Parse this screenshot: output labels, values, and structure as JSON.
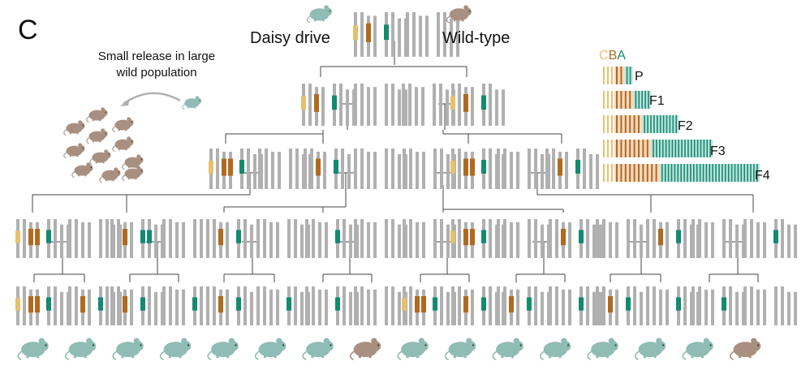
{
  "panel_letter": "C",
  "labels": {
    "daisy_drive": "Daisy drive",
    "wild_type": "Wild-type",
    "release_text": "Small release in large wild population"
  },
  "legend": {
    "letters": [
      "C",
      "B",
      "A"
    ],
    "generations": [
      "P",
      "F1",
      "F2",
      "F3",
      "F4"
    ],
    "copies": [
      {
        "c": 3,
        "b": 2,
        "a": 2
      },
      {
        "c": 3,
        "b": 4,
        "a": 5
      },
      {
        "c": 3,
        "b": 6,
        "a": 11
      },
      {
        "c": 3,
        "b": 8,
        "a": 19
      },
      {
        "c": 3,
        "b": 10,
        "a": 31
      }
    ]
  },
  "colors": {
    "chromosome": "#b0b0b0",
    "element_c": "#e7c06f",
    "element_b": "#b06a20",
    "element_a": "#138a72",
    "mouse_drive": "#8fbcb4",
    "mouse_wild": "#a89080",
    "line": "#444444",
    "band_b": "#f6d8bf",
    "band_a": "#bfe3db"
  },
  "bottom_mice": [
    "drive",
    "drive",
    "drive",
    "drive",
    "drive",
    "drive",
    "drive",
    "wild",
    "drive",
    "drive",
    "drive",
    "drive",
    "drive",
    "drive",
    "drive",
    "wild"
  ],
  "release_mice": 11
}
